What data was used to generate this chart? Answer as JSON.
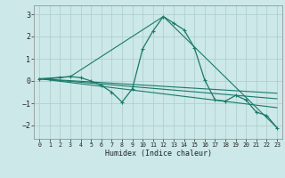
{
  "xlabel": "Humidex (Indice chaleur)",
  "background_color": "#cce8e8",
  "grid_color": "#aacccc",
  "line_color": "#1a7a6a",
  "xlim": [
    -0.5,
    23.5
  ],
  "ylim": [
    -2.6,
    3.4
  ],
  "yticks": [
    -2,
    -1,
    0,
    1,
    2,
    3
  ],
  "xticks": [
    0,
    1,
    2,
    3,
    4,
    5,
    6,
    7,
    8,
    9,
    10,
    11,
    12,
    13,
    14,
    15,
    16,
    17,
    18,
    19,
    20,
    21,
    22,
    23
  ],
  "main_line": {
    "x": [
      0,
      1,
      2,
      3,
      4,
      5,
      6,
      7,
      8,
      9,
      10,
      11,
      12,
      13,
      14,
      15,
      16,
      17,
      18,
      19,
      20,
      21,
      22,
      23
    ],
    "y": [
      0.1,
      0.1,
      0.15,
      0.2,
      0.15,
      0.0,
      -0.2,
      -0.5,
      -0.95,
      -0.35,
      1.45,
      2.25,
      2.9,
      2.6,
      2.3,
      1.5,
      0.05,
      -0.85,
      -0.9,
      -0.65,
      -0.85,
      -1.4,
      -1.55,
      -2.1
    ]
  },
  "extra_lines": [
    {
      "x": [
        0,
        3,
        12,
        23
      ],
      "y": [
        0.1,
        0.2,
        2.9,
        -2.1
      ]
    },
    {
      "x": [
        0,
        23
      ],
      "y": [
        0.1,
        -0.55
      ]
    },
    {
      "x": [
        0,
        23
      ],
      "y": [
        0.1,
        -0.8
      ]
    },
    {
      "x": [
        0,
        23
      ],
      "y": [
        0.1,
        -1.2
      ]
    }
  ]
}
